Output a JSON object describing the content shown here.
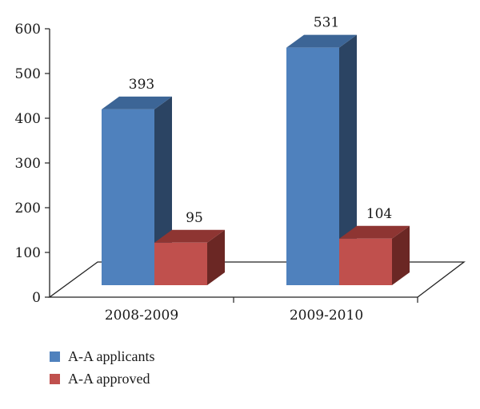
{
  "chart_data": {
    "type": "bar",
    "categories": [
      "2008-2009",
      "2009-2010"
    ],
    "series": [
      {
        "name": "A-A applicants",
        "values": [
          393,
          531
        ],
        "color": "#4f81bd",
        "side_color": "#2b4463",
        "top_color": "#3c6596"
      },
      {
        "name": "A-A approved",
        "values": [
          95,
          104
        ],
        "color": "#c0504d",
        "side_color": "#6b2724",
        "top_color": "#8e3532"
      }
    ],
    "y_ticks": [
      "0",
      "100",
      "200",
      "300",
      "400",
      "500",
      "600"
    ],
    "ylim": [
      0,
      600
    ],
    "legend_position": "bottom-left",
    "three_d": true,
    "title": "",
    "xlabel": "",
    "ylabel": ""
  }
}
